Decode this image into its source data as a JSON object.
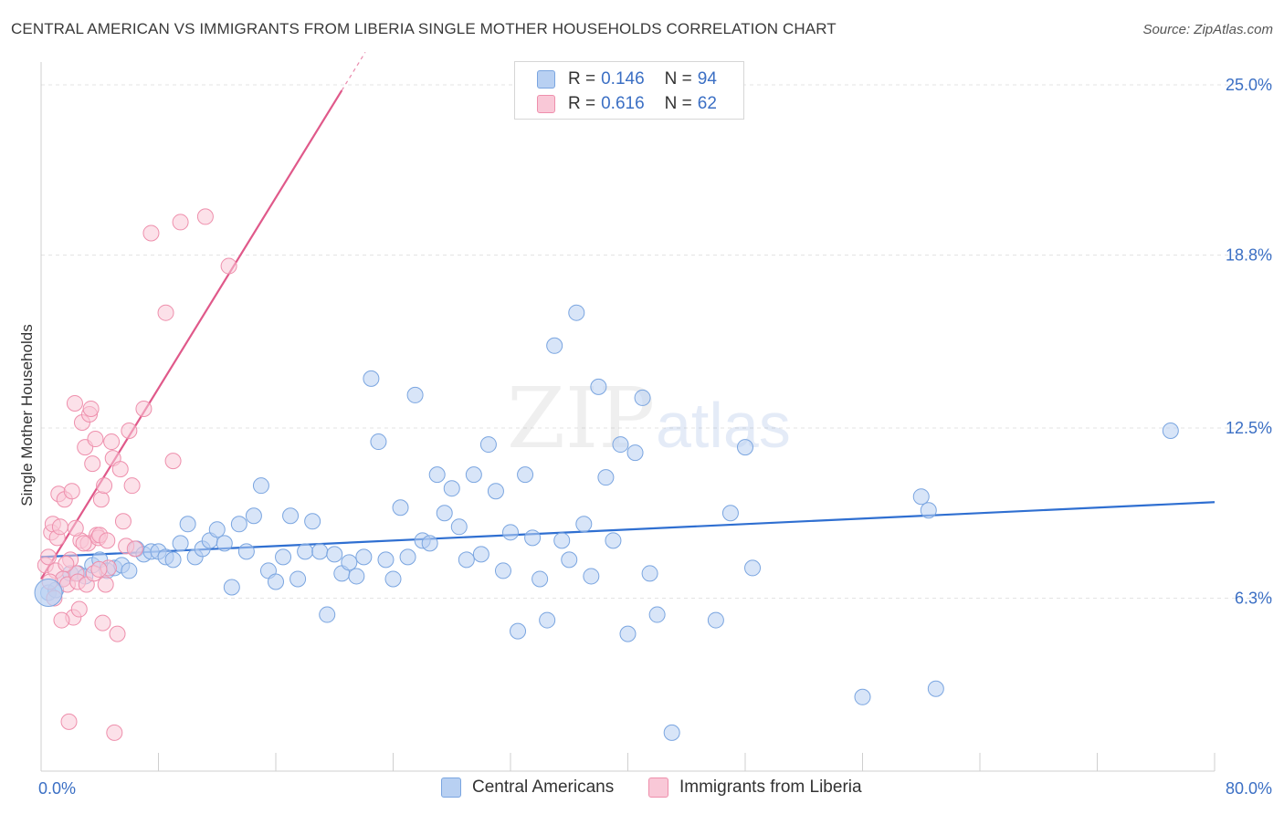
{
  "title": "CENTRAL AMERICAN VS IMMIGRANTS FROM LIBERIA SINGLE MOTHER HOUSEHOLDS CORRELATION CHART",
  "source": "Source: ZipAtlas.com",
  "watermark": {
    "zip": "ZIP",
    "atlas": "atlas"
  },
  "legend": {
    "r_label": "R =",
    "n_label": "N =",
    "rows": [
      {
        "r": "0.146",
        "n": "94",
        "color": "#a9c6ee",
        "border": "#7aa5e0"
      },
      {
        "r": "0.616",
        "n": "62",
        "color": "#f7b6c9",
        "border": "#ee8fac"
      }
    ]
  },
  "bottom_legend": [
    "Central Americans",
    "Immigrants from Liberia"
  ],
  "chart_data": {
    "type": "scatter",
    "title": "CENTRAL AMERICAN VS IMMIGRANTS FROM LIBERIA SINGLE MOTHER HOUSEHOLDS CORRELATION CHART",
    "xlabel": "",
    "ylabel": "Single Mother Households",
    "xlim": [
      0,
      80
    ],
    "ylim": [
      0,
      25.5
    ],
    "x_tick_labels": [
      "0.0%",
      "80.0%"
    ],
    "y_tick_labels": [
      "6.3%",
      "12.5%",
      "18.8%",
      "25.0%"
    ],
    "y_ticks": [
      6.3,
      12.5,
      18.8,
      25.0
    ],
    "grid": "horizontal dashed",
    "legend_position": "top-center",
    "series": [
      {
        "name": "Central Americans",
        "color": "#7aa5e0",
        "fill": "#b8d0f2",
        "trend": {
          "x": [
            0,
            80
          ],
          "y": [
            7.8,
            9.8
          ],
          "color": "#2f6fd1"
        },
        "points": [
          [
            0.5,
            6.5
          ],
          [
            1.0,
            6.6
          ],
          [
            1.5,
            7.0
          ],
          [
            2.0,
            7.2
          ],
          [
            2.5,
            7.2
          ],
          [
            3.0,
            7.1
          ],
          [
            3.5,
            7.5
          ],
          [
            4.0,
            7.7
          ],
          [
            4.5,
            7.3
          ],
          [
            5.0,
            7.4
          ],
          [
            5.5,
            7.5
          ],
          [
            6.0,
            7.3
          ],
          [
            6.5,
            8.1
          ],
          [
            7.0,
            7.9
          ],
          [
            7.5,
            8.0
          ],
          [
            8.0,
            8.0
          ],
          [
            8.5,
            7.8
          ],
          [
            9.0,
            7.7
          ],
          [
            9.5,
            8.3
          ],
          [
            10.0,
            9.0
          ],
          [
            10.5,
            7.8
          ],
          [
            11.0,
            8.1
          ],
          [
            11.5,
            8.4
          ],
          [
            12.0,
            8.8
          ],
          [
            12.5,
            8.3
          ],
          [
            13.0,
            6.7
          ],
          [
            13.5,
            9.0
          ],
          [
            14.0,
            8.0
          ],
          [
            14.5,
            9.3
          ],
          [
            15.0,
            10.4
          ],
          [
            15.5,
            7.3
          ],
          [
            16.0,
            6.9
          ],
          [
            16.5,
            7.8
          ],
          [
            17.0,
            9.3
          ],
          [
            17.5,
            7.0
          ],
          [
            18.0,
            8.0
          ],
          [
            18.5,
            9.1
          ],
          [
            19.0,
            8.0
          ],
          [
            19.5,
            5.7
          ],
          [
            20.0,
            7.9
          ],
          [
            20.5,
            7.2
          ],
          [
            21.0,
            7.6
          ],
          [
            21.5,
            7.1
          ],
          [
            22.0,
            7.8
          ],
          [
            22.5,
            14.3
          ],
          [
            23.0,
            12.0
          ],
          [
            23.5,
            7.7
          ],
          [
            24.0,
            7.0
          ],
          [
            24.5,
            9.6
          ],
          [
            25.0,
            7.8
          ],
          [
            25.5,
            13.7
          ],
          [
            26.0,
            8.4
          ],
          [
            26.5,
            8.3
          ],
          [
            27.0,
            10.8
          ],
          [
            27.5,
            9.4
          ],
          [
            28.0,
            10.3
          ],
          [
            28.5,
            8.9
          ],
          [
            29.0,
            7.7
          ],
          [
            29.5,
            10.8
          ],
          [
            30.0,
            7.9
          ],
          [
            30.5,
            11.9
          ],
          [
            31.0,
            10.2
          ],
          [
            31.5,
            7.3
          ],
          [
            32.0,
            8.7
          ],
          [
            32.5,
            5.1
          ],
          [
            33.0,
            10.8
          ],
          [
            33.5,
            8.5
          ],
          [
            34.0,
            7.0
          ],
          [
            34.5,
            5.5
          ],
          [
            35.0,
            15.5
          ],
          [
            35.5,
            8.4
          ],
          [
            36.0,
            7.7
          ],
          [
            36.5,
            16.7
          ],
          [
            37.0,
            9.0
          ],
          [
            37.5,
            7.1
          ],
          [
            38.0,
            14.0
          ],
          [
            38.5,
            10.7
          ],
          [
            39.0,
            8.4
          ],
          [
            39.5,
            11.9
          ],
          [
            40.0,
            5.0
          ],
          [
            40.5,
            11.6
          ],
          [
            41.0,
            13.6
          ],
          [
            41.5,
            7.2
          ],
          [
            42.0,
            5.7
          ],
          [
            43.0,
            1.4
          ],
          [
            46.0,
            5.5
          ],
          [
            47.0,
            9.4
          ],
          [
            48.0,
            11.8
          ],
          [
            48.5,
            7.4
          ],
          [
            56.0,
            2.7
          ],
          [
            60.0,
            10.0
          ],
          [
            60.5,
            9.5
          ],
          [
            61.0,
            3.0
          ],
          [
            77.0,
            12.4
          ]
        ]
      },
      {
        "name": "Immigrants from Liberia",
        "color": "#ee8fac",
        "fill": "#f9c8d7",
        "trend": {
          "x": [
            0,
            20.5
          ],
          "y": [
            7.0,
            24.8
          ],
          "color": "#e0598a"
        },
        "points": [
          [
            0.3,
            7.5
          ],
          [
            0.5,
            7.8
          ],
          [
            0.7,
            8.7
          ],
          [
            0.8,
            9.0
          ],
          [
            1.0,
            7.3
          ],
          [
            1.1,
            8.5
          ],
          [
            1.2,
            10.1
          ],
          [
            1.3,
            8.9
          ],
          [
            1.5,
            7.0
          ],
          [
            1.6,
            9.9
          ],
          [
            1.8,
            6.8
          ],
          [
            2.0,
            7.7
          ],
          [
            2.1,
            10.2
          ],
          [
            2.2,
            5.6
          ],
          [
            2.3,
            13.4
          ],
          [
            2.4,
            7.2
          ],
          [
            2.5,
            6.9
          ],
          [
            2.6,
            5.9
          ],
          [
            2.7,
            8.4
          ],
          [
            2.8,
            12.7
          ],
          [
            3.0,
            11.8
          ],
          [
            3.1,
            6.8
          ],
          [
            3.2,
            8.3
          ],
          [
            3.3,
            13.0
          ],
          [
            3.4,
            13.2
          ],
          [
            3.5,
            11.2
          ],
          [
            3.6,
            7.2
          ],
          [
            3.7,
            12.1
          ],
          [
            3.8,
            8.6
          ],
          [
            3.9,
            8.5
          ],
          [
            4.0,
            8.6
          ],
          [
            4.1,
            9.9
          ],
          [
            4.2,
            5.4
          ],
          [
            4.3,
            10.4
          ],
          [
            4.4,
            6.8
          ],
          [
            4.5,
            8.4
          ],
          [
            4.6,
            7.4
          ],
          [
            4.8,
            12.0
          ],
          [
            4.9,
            11.4
          ],
          [
            5.0,
            1.4
          ],
          [
            5.2,
            5.0
          ],
          [
            5.4,
            11.0
          ],
          [
            5.6,
            9.1
          ],
          [
            5.8,
            8.2
          ],
          [
            6.0,
            12.4
          ],
          [
            6.2,
            10.4
          ],
          [
            6.4,
            8.1
          ],
          [
            7.0,
            13.2
          ],
          [
            7.5,
            19.6
          ],
          [
            8.5,
            16.7
          ],
          [
            9.0,
            11.3
          ],
          [
            9.5,
            20.0
          ],
          [
            11.2,
            20.2
          ],
          [
            12.8,
            18.4
          ],
          [
            1.9,
            1.8
          ],
          [
            1.4,
            5.5
          ],
          [
            0.9,
            6.3
          ],
          [
            2.9,
            8.3
          ],
          [
            3.95,
            7.35
          ],
          [
            1.7,
            7.55
          ],
          [
            0.6,
            6.9
          ],
          [
            2.35,
            8.85
          ]
        ]
      }
    ]
  }
}
